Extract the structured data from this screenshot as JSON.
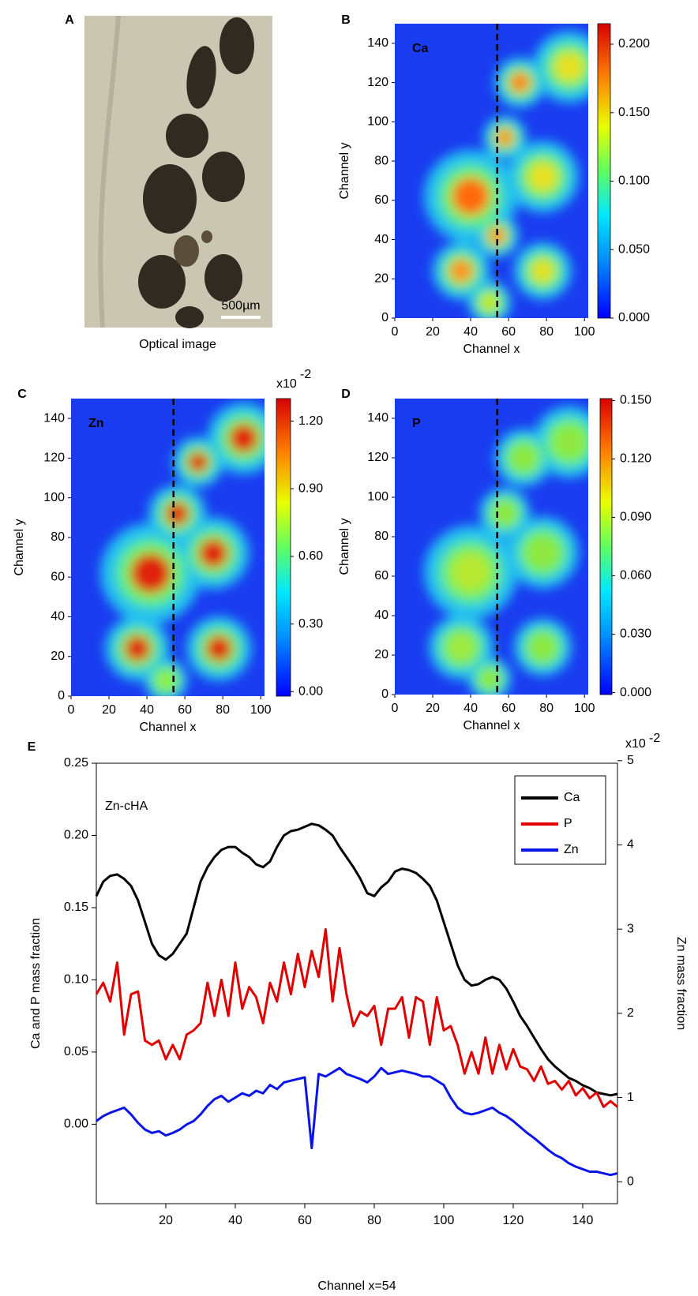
{
  "chart_data": [
    {
      "type": "image",
      "panel": "A",
      "caption": "Optical image",
      "scale_bar": "500µm"
    },
    {
      "type": "heatmap",
      "panel": "B",
      "label": "Ca",
      "x_label": "Channel x",
      "y_label": "Channel y",
      "xlim": [
        0,
        102
      ],
      "ylim": [
        0,
        150
      ],
      "xticks": [
        0,
        20,
        40,
        60,
        80,
        100
      ],
      "yticks": [
        0,
        20,
        40,
        60,
        80,
        100,
        120,
        140
      ],
      "cut_x": 54,
      "colorbar_lim": [
        0,
        0.215
      ],
      "colorbar_ticks": [
        {
          "value": 0,
          "label": "0.000"
        },
        {
          "value": 0.05,
          "label": "0.050"
        },
        {
          "value": 0.1,
          "label": "0.100"
        },
        {
          "value": 0.15,
          "label": "0.150"
        },
        {
          "value": 0.2,
          "label": "0.200"
        }
      ]
    },
    {
      "type": "heatmap",
      "panel": "C",
      "label": "Zn",
      "x_label": "Channel x",
      "y_label": "Channel y",
      "xlim": [
        0,
        102
      ],
      "ylim": [
        0,
        150
      ],
      "xticks": [
        0,
        20,
        40,
        60,
        80,
        100
      ],
      "yticks": [
        0,
        20,
        40,
        60,
        80,
        100,
        120,
        140
      ],
      "cut_x": 54,
      "colorbar_lim": [
        -0.02,
        1.3
      ],
      "colorbar_ticks": [
        {
          "value": 0,
          "label": "0.00"
        },
        {
          "value": 0.3,
          "label": "0.30"
        },
        {
          "value": 0.6,
          "label": "0.60"
        },
        {
          "value": 0.9,
          "label": "0.90"
        },
        {
          "value": 1.2,
          "label": "1.20"
        }
      ],
      "colorbar_multiplier": {
        "base": "x10",
        "exponent": "-2"
      }
    },
    {
      "type": "heatmap",
      "panel": "D",
      "label": "P",
      "x_label": "Channel x",
      "y_label": "Channel y",
      "xlim": [
        0,
        102
      ],
      "ylim": [
        0,
        150
      ],
      "xticks": [
        0,
        20,
        40,
        60,
        80,
        100
      ],
      "yticks": [
        0,
        20,
        40,
        60,
        80,
        100,
        120,
        140
      ],
      "cut_x": 54,
      "colorbar_lim": [
        -0.001,
        0.151
      ],
      "colorbar_ticks": [
        {
          "value": 0,
          "label": "0.000"
        },
        {
          "value": 0.03,
          "label": "0.030"
        },
        {
          "value": 0.06,
          "label": "0.060"
        },
        {
          "value": 0.09,
          "label": "0.090"
        },
        {
          "value": 0.12,
          "label": "0.120"
        },
        {
          "value": 0.15,
          "label": "0.150"
        }
      ]
    },
    {
      "type": "line",
      "panel": "E",
      "annotation": "Zn-cHA",
      "x_label": "Channel x=54",
      "y_label": "Ca and P mass fraction",
      "y2_label": "Zn mass fraction",
      "y2_multiplier": {
        "base": "x10",
        "exponent": "-2"
      },
      "xlim": [
        0,
        150
      ],
      "ylim": [
        -0.055,
        0.25
      ],
      "y2lim": [
        -0.26,
        4.97
      ],
      "legend": "top-right",
      "xticks": [
        20,
        40,
        60,
        80,
        100,
        120,
        140
      ],
      "yticks": [
        {
          "value": 0,
          "label": "0.00"
        },
        {
          "value": 0.05,
          "label": "0.05"
        },
        {
          "value": 0.1,
          "label": "0.10"
        },
        {
          "value": 0.15,
          "label": "0.15"
        },
        {
          "value": 0.2,
          "label": "0.20"
        },
        {
          "value": 0.25,
          "label": "0.25"
        }
      ],
      "y2ticks": [
        0,
        1,
        2,
        3,
        4,
        5
      ],
      "x": [
        0,
        2,
        4,
        6,
        8,
        10,
        12,
        14,
        16,
        18,
        20,
        22,
        24,
        26,
        28,
        30,
        32,
        34,
        36,
        38,
        40,
        42,
        44,
        46,
        48,
        50,
        52,
        54,
        56,
        58,
        60,
        62,
        64,
        66,
        68,
        70,
        72,
        74,
        76,
        78,
        80,
        82,
        84,
        86,
        88,
        90,
        92,
        94,
        96,
        98,
        100,
        102,
        104,
        106,
        108,
        110,
        112,
        114,
        116,
        118,
        120,
        122,
        124,
        126,
        128,
        130,
        132,
        134,
        136,
        138,
        140,
        142,
        144,
        146,
        148,
        150
      ],
      "series": [
        {
          "name": "Ca",
          "color": "#000000",
          "values": [
            0.158,
            0.168,
            0.172,
            0.173,
            0.17,
            0.165,
            0.155,
            0.14,
            0.125,
            0.117,
            0.114,
            0.118,
            0.125,
            0.132,
            0.15,
            0.168,
            0.178,
            0.185,
            0.19,
            0.192,
            0.192,
            0.188,
            0.185,
            0.18,
            0.178,
            0.182,
            0.192,
            0.2,
            0.203,
            0.204,
            0.206,
            0.208,
            0.207,
            0.204,
            0.2,
            0.192,
            0.185,
            0.178,
            0.17,
            0.16,
            0.158,
            0.164,
            0.168,
            0.175,
            0.177,
            0.176,
            0.174,
            0.17,
            0.165,
            0.155,
            0.14,
            0.125,
            0.11,
            0.1,
            0.096,
            0.097,
            0.1,
            0.102,
            0.1,
            0.094,
            0.085,
            0.075,
            0.068,
            0.06,
            0.052,
            0.045,
            0.04,
            0.036,
            0.032,
            0.03,
            0.027,
            0.025,
            0.022,
            0.021,
            0.02,
            0.021
          ]
        },
        {
          "name": "P",
          "color": "#e00000",
          "values": [
            0.09,
            0.098,
            0.085,
            0.112,
            0.062,
            0.09,
            0.092,
            0.058,
            0.055,
            0.058,
            0.045,
            0.055,
            0.045,
            0.062,
            0.065,
            0.07,
            0.098,
            0.075,
            0.1,
            0.075,
            0.112,
            0.08,
            0.095,
            0.088,
            0.07,
            0.098,
            0.085,
            0.112,
            0.09,
            0.118,
            0.095,
            0.12,
            0.102,
            0.135,
            0.085,
            0.122,
            0.09,
            0.068,
            0.078,
            0.075,
            0.082,
            0.055,
            0.08,
            0.08,
            0.088,
            0.06,
            0.088,
            0.085,
            0.055,
            0.088,
            0.065,
            0.068,
            0.055,
            0.035,
            0.05,
            0.035,
            0.06,
            0.035,
            0.055,
            0.038,
            0.052,
            0.04,
            0.038,
            0.03,
            0.04,
            0.028,
            0.03,
            0.024,
            0.03,
            0.02,
            0.025,
            0.018,
            0.022,
            0.012,
            0.016,
            0.012
          ]
        },
        {
          "name": "Zn",
          "color": "#0a14e6",
          "axis": "y2",
          "values": [
            0.72,
            0.78,
            0.82,
            0.85,
            0.88,
            0.8,
            0.7,
            0.62,
            0.58,
            0.6,
            0.55,
            0.58,
            0.62,
            0.68,
            0.72,
            0.8,
            0.9,
            0.98,
            1.02,
            0.95,
            1.0,
            1.05,
            1.02,
            1.08,
            1.05,
            1.15,
            1.1,
            1.18,
            1.2,
            1.22,
            1.24,
            0.4,
            1.28,
            1.25,
            1.3,
            1.35,
            1.28,
            1.25,
            1.22,
            1.18,
            1.25,
            1.35,
            1.28,
            1.3,
            1.32,
            1.3,
            1.28,
            1.25,
            1.25,
            1.2,
            1.15,
            1.0,
            0.88,
            0.82,
            0.8,
            0.82,
            0.85,
            0.88,
            0.82,
            0.78,
            0.72,
            0.65,
            0.58,
            0.52,
            0.45,
            0.38,
            0.32,
            0.28,
            0.22,
            0.18,
            0.15,
            0.12,
            0.12,
            0.1,
            0.08,
            0.1
          ]
        }
      ]
    }
  ]
}
